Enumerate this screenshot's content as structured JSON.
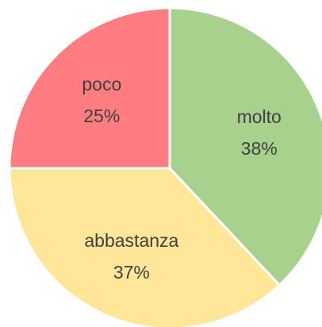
{
  "chart_data": {
    "type": "pie",
    "categories": [
      "molto",
      "abbastanza",
      "poco"
    ],
    "values": [
      38,
      37,
      25
    ],
    "value_labels": [
      "38%",
      "37%",
      "25%"
    ],
    "colors": [
      "#a9d18e",
      "#ffe699",
      "#ff7c80"
    ]
  }
}
